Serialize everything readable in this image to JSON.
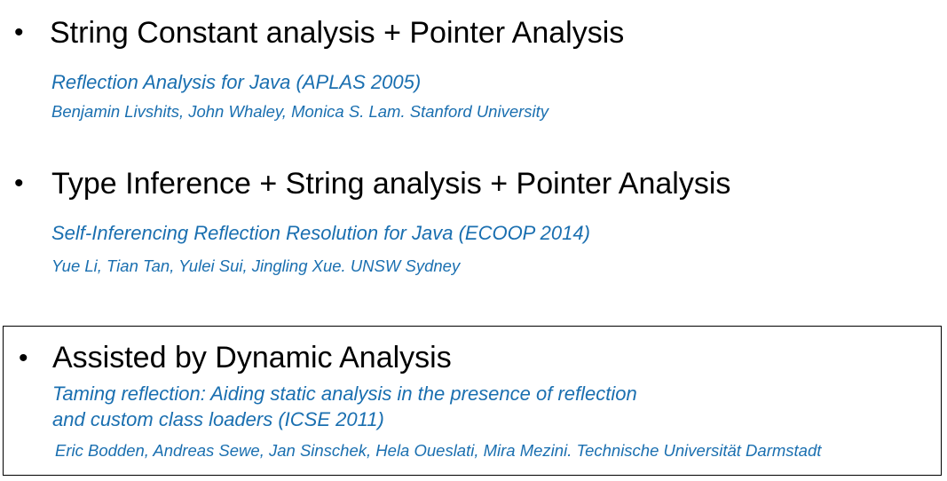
{
  "entries": [
    {
      "bullet": "•",
      "heading": "String Constant analysis + Pointer Analysis",
      "title": "Reflection Analysis for Java (APLAS 2005)",
      "authors": "Benjamin Livshits, John Whaley, Monica S. Lam. Stanford University"
    },
    {
      "bullet": "•",
      "heading": "Type Inference + String analysis + Pointer Analysis",
      "title": "Self-Inferencing Reflection Resolution for Java (ECOOP 2014)",
      "authors": "Yue Li, Tian Tan, Yulei Sui, Jingling Xue. UNSW Sydney"
    }
  ],
  "highlighted_entry": {
    "bullet": "•",
    "heading": "Assisted by Dynamic Analysis",
    "title_line1": "Taming reflection: Aiding static analysis in the presence of reflection",
    "title_line2": "and custom class loaders (ICSE 2011)",
    "authors": "Eric Bodden, Andreas Sewe, Jan Sinschek, Hela Oueslati, Mira Mezini. Technische Universität Darmstadt"
  },
  "colors": {
    "reference_text": "#1a6fb0",
    "heading_text": "#000000",
    "box_border": "#000000"
  }
}
